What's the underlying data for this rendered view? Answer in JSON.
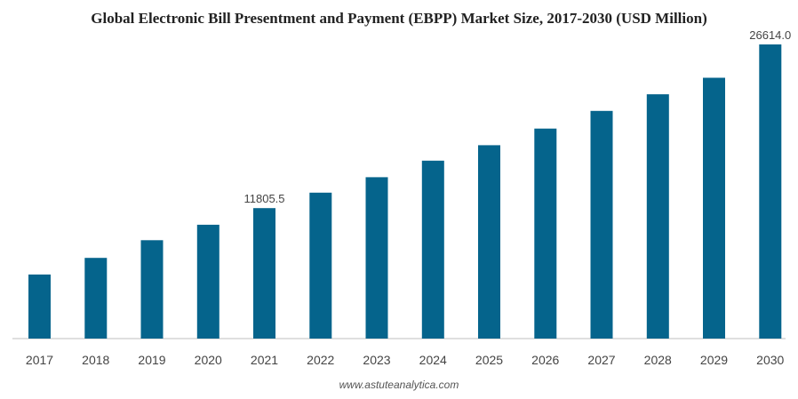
{
  "chart_data": {
    "type": "bar",
    "title": "Global Electronic Bill Presentment and Payment (EBPP) Market Size, 2017-2030 (USD Million)",
    "xlabel": "",
    "ylabel": "",
    "categories": [
      "2017",
      "2018",
      "2019",
      "2020",
      "2021",
      "2022",
      "2023",
      "2024",
      "2025",
      "2026",
      "2027",
      "2028",
      "2029",
      "2030"
    ],
    "values": [
      5800,
      7300,
      8900,
      10300,
      11805.5,
      13200,
      14600,
      16100,
      17500,
      19000,
      20600,
      22100,
      23600,
      26614.0
    ],
    "data_labels": [
      {
        "index": 4,
        "text": "11805.5"
      },
      {
        "index": 13,
        "text": "26614.0"
      }
    ],
    "ylim": [
      0,
      26614.0
    ],
    "grid": false,
    "legend": "none",
    "bar_color": "#05648C"
  },
  "watermark": "www.astuteanalytica.com"
}
